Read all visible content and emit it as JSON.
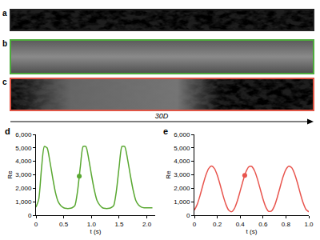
{
  "images": [
    {
      "label": "a",
      "color": "#222222"
    },
    {
      "label": "b",
      "color": "#4daa3c"
    },
    {
      "label": "c",
      "color": "#e05545"
    }
  ],
  "scale": {
    "label": "30D"
  },
  "chart_data": [
    {
      "panel": "d",
      "type": "line",
      "x": [
        0,
        0.05,
        0.1,
        0.15,
        0.2,
        0.25,
        0.3,
        0.35,
        0.4,
        0.45,
        0.5,
        0.55,
        0.6,
        0.65,
        0.7,
        0.75,
        0.8,
        0.85,
        0.9,
        0.95,
        1.0,
        1.05,
        1.1,
        1.15,
        1.2,
        1.25,
        1.3,
        1.35,
        1.4,
        1.45,
        1.5,
        1.55,
        1.6,
        1.65,
        1.7,
        1.75,
        1.8,
        1.85,
        1.9,
        1.95,
        2.0,
        2.05,
        2.1
      ],
      "series": [
        {
          "color": "#5aa832",
          "values": [
            600,
            1200,
            3500,
            5100,
            5000,
            4000,
            2800,
            1700,
            1000,
            700,
            550,
            500,
            500,
            550,
            700,
            1800,
            3600,
            5100,
            5100,
            4200,
            3000,
            1900,
            1100,
            750,
            550,
            500,
            500,
            550,
            700,
            1800,
            3600,
            5100,
            5100,
            4200,
            3000,
            1900,
            1100,
            750,
            600,
            550,
            550,
            550,
            550
          ]
        },
        {
          "type": "scatter",
          "marker": "circle",
          "color": "#5aa832",
          "x": [
            0.78
          ],
          "values": [
            2900
          ]
        }
      ],
      "xlabel": "t (s)",
      "ylabel": "Re",
      "xlim": [
        0,
        2.15
      ],
      "ylim": [
        0,
        6000
      ],
      "xticks": [
        0,
        0.5,
        {
          "value": 1,
          "label": "1.0"
        },
        1.5,
        {
          "value": 2,
          "label": "2.0"
        }
      ],
      "yticks": [
        0,
        {
          "value": 1000,
          "label": "1,000"
        },
        {
          "value": 2000,
          "label": "2,000"
        },
        {
          "value": 3000,
          "label": "3,000"
        },
        {
          "value": 4000,
          "label": "4,000"
        },
        {
          "value": 5000,
          "label": "5,000"
        },
        {
          "value": 6000,
          "label": "6,000"
        }
      ]
    },
    {
      "panel": "e",
      "type": "line",
      "x": [
        0,
        0.025,
        0.05,
        0.075,
        0.1,
        0.125,
        0.15,
        0.175,
        0.2,
        0.225,
        0.25,
        0.275,
        0.3,
        0.325,
        0.35,
        0.375,
        0.4,
        0.425,
        0.45,
        0.475,
        0.5,
        0.525,
        0.55,
        0.575,
        0.6,
        0.625,
        0.65,
        0.675,
        0.7,
        0.725,
        0.75,
        0.775,
        0.8,
        0.825,
        0.85,
        0.875,
        0.9,
        0.925,
        0.95,
        0.975,
        1.0
      ],
      "series": [
        {
          "color": "#e8554e",
          "values": [
            370,
            810,
            1480,
            2260,
            2970,
            3470,
            3650,
            3470,
            2970,
            2260,
            1480,
            810,
            370,
            260,
            500,
            1050,
            1790,
            2560,
            3210,
            3590,
            3620,
            3310,
            2710,
            1950,
            1190,
            590,
            280,
            320,
            690,
            1340,
            2110,
            2850,
            3400,
            3640,
            3530,
            3090,
            2420,
            1640,
            930,
            430,
            250
          ]
        },
        {
          "type": "scatter",
          "marker": "circle",
          "color": "#e8554e",
          "x": [
            0.44
          ],
          "values": [
            2950
          ]
        }
      ],
      "xlabel": "t (s)",
      "ylabel": "Re",
      "xlim": [
        0,
        1.0
      ],
      "ylim": [
        0,
        6000
      ],
      "xticks": [
        0,
        0.2,
        0.4,
        0.6,
        0.8,
        {
          "value": 1,
          "label": "1.0"
        }
      ],
      "yticks": [
        0,
        {
          "value": 1000,
          "label": "1,000"
        },
        {
          "value": 2000,
          "label": "2,000"
        },
        {
          "value": 3000,
          "label": "3,000"
        },
        {
          "value": 4000,
          "label": "4,000"
        },
        {
          "value": 5000,
          "label": "5,000"
        },
        {
          "value": 6000,
          "label": "6,000"
        }
      ]
    }
  ]
}
